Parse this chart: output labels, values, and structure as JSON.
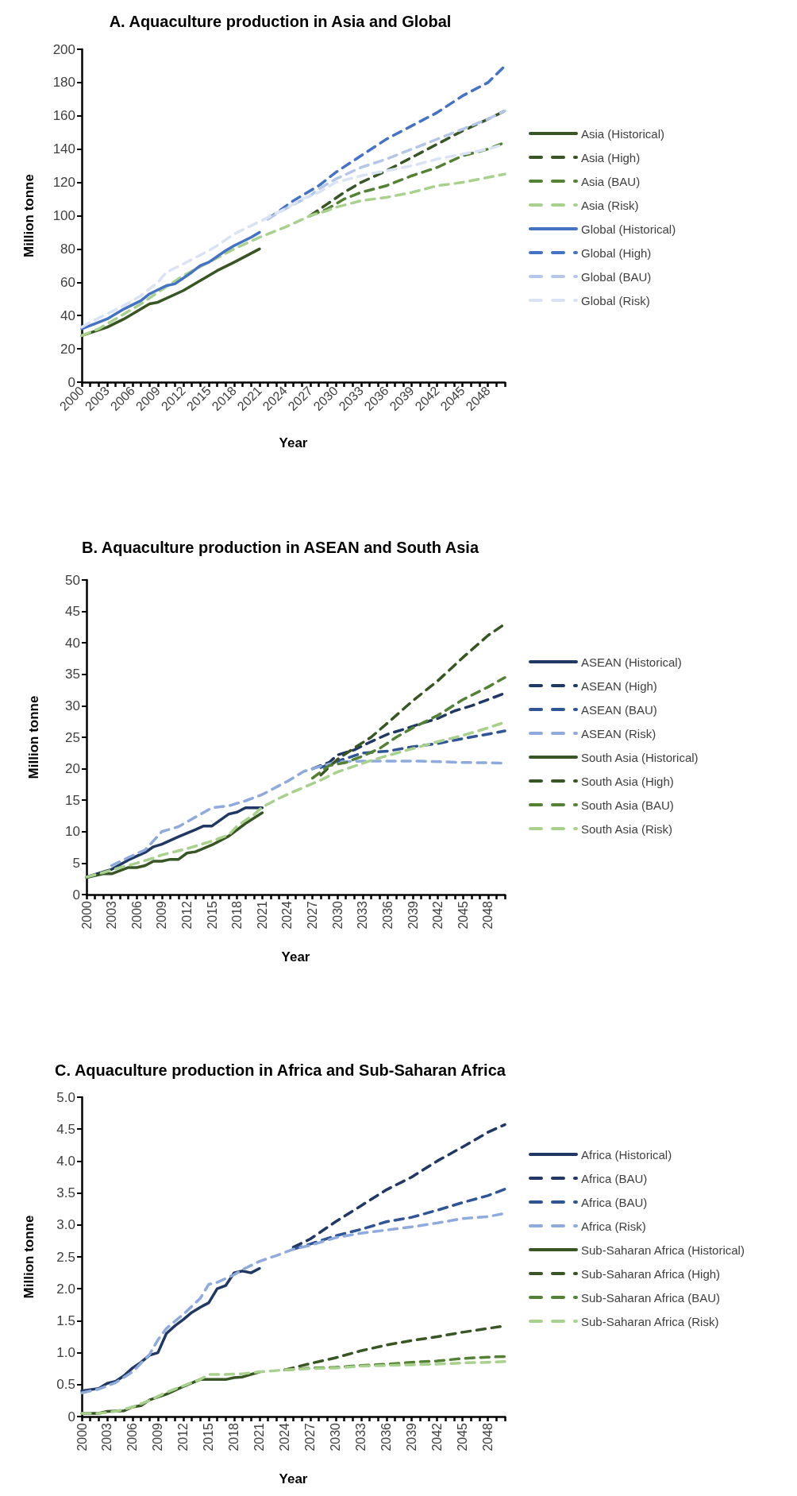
{
  "chart_data": [
    {
      "type": "line",
      "title": "A. Aquaculture production in Asia and Global",
      "xlabel": "Year",
      "ylabel": "Million tonne",
      "xlim": [
        2000,
        2050
      ],
      "ylim": [
        0,
        200
      ],
      "yticks": [
        0,
        20,
        40,
        60,
        80,
        100,
        120,
        140,
        160,
        180,
        200
      ],
      "xticks": [
        2000,
        {
          "value": 2001,
          "label": null
        },
        {
          "value": 2002,
          "label": null
        },
        2003,
        {
          "value": 2004,
          "label": null
        },
        {
          "value": 2005,
          "label": null
        },
        2006,
        {
          "value": 2007,
          "label": null
        },
        {
          "value": 2008,
          "label": null
        },
        2009,
        {
          "value": 2010,
          "label": null
        },
        {
          "value": 2011,
          "label": null
        },
        2012,
        {
          "value": 2013,
          "label": null
        },
        {
          "value": 2014,
          "label": null
        },
        2015,
        {
          "value": 2016,
          "label": null
        },
        {
          "value": 2017,
          "label": null
        },
        2018,
        {
          "value": 2019,
          "label": null
        },
        {
          "value": 2020,
          "label": null
        },
        2021,
        {
          "value": 2022,
          "label": null
        },
        {
          "value": 2023,
          "label": null
        },
        2024,
        {
          "value": 2025,
          "label": null
        },
        {
          "value": 2026,
          "label": null
        },
        2027,
        {
          "value": 2028,
          "label": null
        },
        {
          "value": 2029,
          "label": null
        },
        2030,
        {
          "value": 2031,
          "label": null
        },
        {
          "value": 2032,
          "label": null
        },
        2033,
        {
          "value": 2034,
          "label": null
        },
        {
          "value": 2035,
          "label": null
        },
        2036,
        {
          "value": 2037,
          "label": null
        },
        {
          "value": 2038,
          "label": null
        },
        2039,
        {
          "value": 2040,
          "label": null
        },
        {
          "value": 2041,
          "label": null
        },
        2042,
        {
          "value": 2043,
          "label": null
        },
        {
          "value": 2044,
          "label": null
        },
        2045,
        {
          "value": 2046,
          "label": null
        },
        {
          "value": 2047,
          "label": null
        },
        2048,
        {
          "value": 2049,
          "label": null
        },
        {
          "value": 2050,
          "label": null
        }
      ],
      "grid": false,
      "legend": "right",
      "marker": "none",
      "line_style": "solid",
      "series": [
        {
          "name": "Asia (Historical)",
          "color": "#375623",
          "x": [
            2000,
            2003,
            2005,
            2008,
            2009,
            2012,
            2015,
            2016,
            2018,
            2021
          ],
          "values": [
            28,
            33,
            38,
            47,
            48,
            55,
            64,
            67,
            72,
            80
          ]
        },
        {
          "name": "Asia (High)",
          "color": "#375623",
          "line_style": "dashed",
          "x": [
            2027,
            2029,
            2031,
            2033,
            2036,
            2039,
            2042,
            2045,
            2048,
            2050
          ],
          "values": [
            100,
            107,
            114,
            120,
            127,
            135,
            143,
            151,
            158,
            163
          ]
        },
        {
          "name": "Asia (BAU)",
          "color": "#548235",
          "line_style": "dashed",
          "x": [
            2027,
            2029,
            2031,
            2033,
            2036,
            2039,
            2042,
            2045,
            2048,
            2050
          ],
          "values": [
            100,
            104,
            110,
            114,
            118,
            124,
            129,
            136,
            140,
            144
          ]
        },
        {
          "name": "Asia (Risk)",
          "color": "#a9d18e",
          "line_style": "dashed",
          "x": [
            2000,
            2002,
            2004,
            2007,
            2009,
            2012,
            2015,
            2018,
            2021,
            2024,
            2027,
            2029,
            2030,
            2033,
            2036,
            2039,
            2042,
            2045,
            2048,
            2050
          ],
          "values": [
            28,
            32,
            38,
            47,
            54,
            64,
            72,
            80,
            87,
            93,
            100,
            103,
            105,
            109,
            111,
            114,
            118,
            120,
            123,
            125
          ]
        },
        {
          "name": "Global (Historical)",
          "color": "#4472c4",
          "x": [
            2000,
            2002,
            2003,
            2005,
            2007,
            2008,
            2010,
            2011,
            2013,
            2014,
            2015,
            2017,
            2018,
            2020,
            2021
          ],
          "values": [
            32,
            36,
            38,
            44,
            49,
            53,
            58,
            59,
            66,
            70,
            72,
            79,
            82,
            87,
            90
          ]
        },
        {
          "name": "Global (High)",
          "color": "#4472c4",
          "line_style": "dashed",
          "x": [
            2022,
            2025,
            2028,
            2030,
            2033,
            2036,
            2039,
            2042,
            2045,
            2048,
            2050
          ],
          "values": [
            98,
            109,
            118,
            126,
            136,
            146,
            154,
            162,
            172,
            180,
            190
          ]
        },
        {
          "name": "Global (BAU)",
          "color": "#b4c7e7",
          "line_style": "dashed",
          "x": [
            2022,
            2024,
            2027,
            2028,
            2030,
            2033,
            2036,
            2039,
            2042,
            2045,
            2048,
            2050
          ],
          "values": [
            98,
            104,
            112,
            116,
            122,
            129,
            134,
            140,
            146,
            152,
            158,
            163
          ]
        },
        {
          "name": "Global (Risk)",
          "color": "#dae3f3",
          "line_style": "dashed",
          "x": [
            2000,
            2001,
            2003,
            2005,
            2007,
            2009,
            2010,
            2012,
            2015,
            2016,
            2018,
            2020,
            2022,
            2024,
            2026,
            2028,
            2030,
            2033,
            2036,
            2039,
            2042,
            2045,
            2048,
            2050
          ],
          "values": [
            33,
            36,
            41,
            46,
            52,
            60,
            66,
            71,
            79,
            82,
            89,
            94,
            99,
            104,
            110,
            114,
            120,
            124,
            127,
            130,
            134,
            137,
            140,
            143
          ]
        }
      ]
    },
    {
      "type": "line",
      "title": "B. Aquaculture production in ASEAN and South Asia",
      "xlabel": "Year",
      "ylabel": "Million tonne",
      "xlim": [
        2000,
        2050
      ],
      "ylim": [
        0,
        50
      ],
      "yticks": [
        0,
        5,
        10,
        15,
        20,
        25,
        30,
        35,
        40,
        45,
        50
      ],
      "xticks": [
        2000,
        {
          "value": 2001,
          "label": null
        },
        {
          "value": 2002,
          "label": null
        },
        2003,
        {
          "value": 2004,
          "label": null
        },
        {
          "value": 2005,
          "label": null
        },
        2006,
        {
          "value": 2007,
          "label": null
        },
        {
          "value": 2008,
          "label": null
        },
        2009,
        {
          "value": 2010,
          "label": null
        },
        {
          "value": 2011,
          "label": null
        },
        2012,
        {
          "value": 2013,
          "label": null
        },
        {
          "value": 2014,
          "label": null
        },
        2015,
        {
          "value": 2016,
          "label": null
        },
        {
          "value": 2017,
          "label": null
        },
        2018,
        {
          "value": 2019,
          "label": null
        },
        {
          "value": 2020,
          "label": null
        },
        2021,
        {
          "value": 2022,
          "label": null
        },
        {
          "value": 2023,
          "label": null
        },
        2024,
        {
          "value": 2025,
          "label": null
        },
        {
          "value": 2026,
          "label": null
        },
        2027,
        {
          "value": 2028,
          "label": null
        },
        {
          "value": 2029,
          "label": null
        },
        2030,
        {
          "value": 2031,
          "label": null
        },
        {
          "value": 2032,
          "label": null
        },
        2033,
        {
          "value": 2034,
          "label": null
        },
        {
          "value": 2035,
          "label": null
        },
        2036,
        {
          "value": 2037,
          "label": null
        },
        {
          "value": 2038,
          "label": null
        },
        2039,
        {
          "value": 2040,
          "label": null
        },
        {
          "value": 2041,
          "label": null
        },
        2042,
        {
          "value": 2043,
          "label": null
        },
        {
          "value": 2044,
          "label": null
        },
        2045,
        {
          "value": 2046,
          "label": null
        },
        {
          "value": 2047,
          "label": null
        },
        2048,
        {
          "value": 2049,
          "label": null
        },
        {
          "value": 2050,
          "label": null
        }
      ],
      "grid": false,
      "legend": "right",
      "marker": "none",
      "line_style": "solid",
      "series": [
        {
          "name": "ASEAN (Historical)",
          "color": "#203864",
          "x": [
            2000,
            2002,
            2003,
            2005,
            2007,
            2008,
            2009,
            2011,
            2013,
            2014,
            2015,
            2017,
            2018,
            2019,
            2021
          ],
          "values": [
            2.8,
            3.6,
            4.0,
            5.5,
            6.7,
            7.6,
            8.0,
            9.2,
            10.3,
            10.9,
            10.9,
            12.8,
            13.1,
            13.8,
            13.8
          ]
        },
        {
          "name": "ASEAN (High)",
          "color": "#203864",
          "line_style": "dashed",
          "x": [
            2027,
            2029,
            2030,
            2032,
            2034,
            2036,
            2038,
            2040,
            2042,
            2044,
            2046,
            2048,
            2050
          ],
          "values": [
            20.0,
            21.0,
            22.2,
            23.0,
            24.3,
            25.5,
            26.3,
            27.2,
            28.0,
            29.2,
            30.0,
            31.0,
            32.0
          ]
        },
        {
          "name": "ASEAN (BAU)",
          "color": "#2f5597",
          "line_style": "dashed",
          "x": [
            2028,
            2030,
            2033,
            2036,
            2039,
            2042,
            2045,
            2048,
            2050
          ],
          "values": [
            20.2,
            21.2,
            22.5,
            22.8,
            23.5,
            24.0,
            24.8,
            25.5,
            26.0
          ]
        },
        {
          "name": "ASEAN (Risk)",
          "color": "#8faadc",
          "line_style": "dashed",
          "x": [
            2003,
            2005,
            2007,
            2009,
            2011,
            2013,
            2015,
            2017,
            2019,
            2021,
            2024,
            2026,
            2028,
            2030,
            2033,
            2036,
            2040,
            2045,
            2050
          ],
          "values": [
            4.6,
            5.9,
            7.1,
            10.0,
            10.8,
            12.3,
            13.8,
            14.1,
            14.9,
            15.9,
            18.0,
            19.6,
            20.4,
            21.1,
            21.2,
            21.2,
            21.2,
            21.0,
            20.9
          ]
        },
        {
          "name": "South Asia (Historical)",
          "color": "#375623",
          "x": [
            2000,
            2002,
            2003,
            2005,
            2006,
            2007,
            2008,
            2009,
            2010,
            2011,
            2012,
            2013,
            2015,
            2017,
            2019,
            2021
          ],
          "values": [
            2.7,
            3.3,
            3.3,
            4.3,
            4.3,
            4.6,
            5.3,
            5.3,
            5.6,
            5.6,
            6.6,
            6.8,
            7.9,
            9.3,
            11.3,
            13.0
          ]
        },
        {
          "name": "South Asia (High)",
          "color": "#375623",
          "line_style": "dashed",
          "x": [
            2028,
            2030,
            2032,
            2034,
            2036,
            2039,
            2042,
            2045,
            2048,
            2050
          ],
          "values": [
            19.0,
            21.5,
            23.3,
            25.0,
            27.3,
            30.8,
            34.0,
            37.7,
            41.2,
            43.0
          ]
        },
        {
          "name": "South Asia (BAU)",
          "color": "#548235",
          "line_style": "dashed",
          "x": [
            2027,
            2029,
            2031,
            2033,
            2035,
            2037,
            2039,
            2042,
            2045,
            2048,
            2050
          ],
          "values": [
            18.5,
            20.5,
            21.0,
            22.0,
            23.2,
            25.0,
            26.5,
            28.5,
            31.0,
            33.0,
            34.5
          ]
        },
        {
          "name": "South Asia (Risk)",
          "color": "#a9d18e",
          "line_style": "dashed",
          "x": [
            2000,
            2002,
            2004,
            2006,
            2008,
            2009,
            2012,
            2015,
            2017,
            2018,
            2020,
            2021,
            2023,
            2025,
            2028,
            2030,
            2032,
            2034,
            2036,
            2039,
            2042,
            2045,
            2048,
            2050
          ],
          "values": [
            2.8,
            3.5,
            4.3,
            5.0,
            5.8,
            6.3,
            7.3,
            8.5,
            9.5,
            10.9,
            12.7,
            13.9,
            15.3,
            16.5,
            18.2,
            19.5,
            20.4,
            21.3,
            22.1,
            23.2,
            24.3,
            25.3,
            26.5,
            27.4
          ]
        }
      ]
    },
    {
      "type": "line",
      "title": "C. Aquaculture production in Africa and Sub-Saharan Africa",
      "xlabel": "Year",
      "ylabel": "Million tonne",
      "xlim": [
        2000,
        2050
      ],
      "ylim": [
        0,
        5
      ],
      "yticks": [
        0,
        {
          "value": 0.5,
          "label": "0.5"
        },
        {
          "value": 1,
          "label": "1.0"
        },
        {
          "value": 1.5,
          "label": "1.5"
        },
        {
          "value": 2,
          "label": "2.0"
        },
        {
          "value": 2.5,
          "label": "2.5"
        },
        {
          "value": 3,
          "label": "3.0"
        },
        {
          "value": 3.5,
          "label": "3.5"
        },
        {
          "value": 4,
          "label": "4.0"
        },
        {
          "value": 4.5,
          "label": "4.5"
        },
        {
          "value": 5,
          "label": "5.0"
        }
      ],
      "xticks": [
        2000,
        {
          "value": 2001,
          "label": null
        },
        {
          "value": 2002,
          "label": null
        },
        2003,
        {
          "value": 2004,
          "label": null
        },
        {
          "value": 2005,
          "label": null
        },
        2006,
        {
          "value": 2007,
          "label": null
        },
        {
          "value": 2008,
          "label": null
        },
        2009,
        {
          "value": 2010,
          "label": null
        },
        {
          "value": 2011,
          "label": null
        },
        2012,
        {
          "value": 2013,
          "label": null
        },
        {
          "value": 2014,
          "label": null
        },
        2015,
        {
          "value": 2016,
          "label": null
        },
        {
          "value": 2017,
          "label": null
        },
        2018,
        {
          "value": 2019,
          "label": null
        },
        {
          "value": 2020,
          "label": null
        },
        2021,
        {
          "value": 2022,
          "label": null
        },
        {
          "value": 2023,
          "label": null
        },
        2024,
        {
          "value": 2025,
          "label": null
        },
        {
          "value": 2026,
          "label": null
        },
        2027,
        {
          "value": 2028,
          "label": null
        },
        {
          "value": 2029,
          "label": null
        },
        2030,
        {
          "value": 2031,
          "label": null
        },
        {
          "value": 2032,
          "label": null
        },
        2033,
        {
          "value": 2034,
          "label": null
        },
        {
          "value": 2035,
          "label": null
        },
        2036,
        {
          "value": 2037,
          "label": null
        },
        {
          "value": 2038,
          "label": null
        },
        2039,
        {
          "value": 2040,
          "label": null
        },
        {
          "value": 2041,
          "label": null
        },
        2042,
        {
          "value": 2043,
          "label": null
        },
        {
          "value": 2044,
          "label": null
        },
        2045,
        {
          "value": 2046,
          "label": null
        },
        {
          "value": 2047,
          "label": null
        },
        2048,
        {
          "value": 2049,
          "label": null
        },
        {
          "value": 2050,
          "label": null
        }
      ],
      "grid": false,
      "legend": "right",
      "marker": "none",
      "line_style": "solid",
      "series": [
        {
          "name": "Africa (Historical)",
          "color": "#203864",
          "x": [
            2000,
            2002,
            2003,
            2004,
            2005,
            2006,
            2007,
            2008,
            2009,
            2010,
            2011,
            2012,
            2013,
            2014,
            2015,
            2016,
            2017,
            2018,
            2019,
            2020,
            2021
          ],
          "values": [
            0.4,
            0.44,
            0.52,
            0.55,
            0.64,
            0.76,
            0.85,
            0.96,
            1.0,
            1.3,
            1.42,
            1.52,
            1.63,
            1.71,
            1.78,
            2.0,
            2.05,
            2.25,
            2.28,
            2.25,
            2.32
          ]
        },
        {
          "name": "Africa (BAU)",
          "color": "#203864",
          "line_style": "dashed",
          "x": [
            2025,
            2027,
            2030,
            2033,
            2036,
            2039,
            2042,
            2045,
            2048,
            2050
          ],
          "values": [
            2.65,
            2.78,
            3.05,
            3.3,
            3.55,
            3.75,
            4.0,
            4.22,
            4.45,
            4.57
          ]
        },
        {
          "name": "Africa (BAU)",
          "color": "#2f5597",
          "line_style": "dashed",
          "x": [
            2025,
            2027,
            2030,
            2033,
            2036,
            2039,
            2042,
            2045,
            2048,
            2050
          ],
          "values": [
            2.62,
            2.7,
            2.83,
            2.93,
            3.05,
            3.12,
            3.23,
            3.35,
            3.46,
            3.56
          ]
        },
        {
          "name": "Africa (Risk)",
          "color": "#8faadc",
          "line_style": "dashed",
          "x": [
            2000,
            2002,
            2004,
            2006,
            2008,
            2009,
            2010,
            2012,
            2014,
            2015,
            2016,
            2018,
            2019,
            2021,
            2023,
            2025,
            2027,
            2030,
            2033,
            2036,
            2039,
            2042,
            2045,
            2048,
            2050
          ],
          "values": [
            0.37,
            0.43,
            0.53,
            0.7,
            0.97,
            1.2,
            1.38,
            1.6,
            1.85,
            2.07,
            2.1,
            2.22,
            2.3,
            2.43,
            2.52,
            2.62,
            2.68,
            2.8,
            2.87,
            2.92,
            2.97,
            3.03,
            3.1,
            3.13,
            3.18
          ]
        },
        {
          "name": "Sub-Saharan Africa (Historical)",
          "color": "#375623",
          "x": [
            2000,
            2002,
            2003,
            2005,
            2006,
            2007,
            2008,
            2010,
            2012,
            2014,
            2017,
            2018,
            2019,
            2021
          ],
          "values": [
            0.05,
            0.05,
            0.08,
            0.09,
            0.15,
            0.17,
            0.26,
            0.35,
            0.47,
            0.58,
            0.58,
            0.61,
            0.62,
            0.7
          ]
        },
        {
          "name": "Sub-Saharan Africa (High)",
          "color": "#375623",
          "line_style": "dashed",
          "x": [
            2024,
            2027,
            2030,
            2033,
            2036,
            2039,
            2042,
            2045,
            2048,
            2050
          ],
          "values": [
            0.73,
            0.83,
            0.92,
            1.03,
            1.12,
            1.19,
            1.25,
            1.32,
            1.38,
            1.42
          ]
        },
        {
          "name": "Sub-Saharan Africa (BAU)",
          "color": "#548235",
          "line_style": "dashed",
          "x": [
            2024,
            2027,
            2030,
            2033,
            2036,
            2039,
            2042,
            2045,
            2048,
            2050
          ],
          "values": [
            0.73,
            0.76,
            0.77,
            0.8,
            0.82,
            0.85,
            0.87,
            0.91,
            0.93,
            0.94
          ]
        },
        {
          "name": "Sub-Saharan Africa (Risk)",
          "color": "#a9d18e",
          "line_style": "dashed",
          "x": [
            2000,
            2002,
            2004,
            2006,
            2008,
            2010,
            2012,
            2014,
            2015,
            2017,
            2019,
            2021,
            2024,
            2027,
            2030,
            2033,
            2036,
            2039,
            2042,
            2045,
            2048,
            2050
          ],
          "values": [
            0.05,
            0.05,
            0.08,
            0.15,
            0.25,
            0.38,
            0.48,
            0.58,
            0.66,
            0.66,
            0.67,
            0.7,
            0.73,
            0.75,
            0.76,
            0.79,
            0.8,
            0.81,
            0.82,
            0.84,
            0.85,
            0.86
          ]
        }
      ]
    }
  ]
}
